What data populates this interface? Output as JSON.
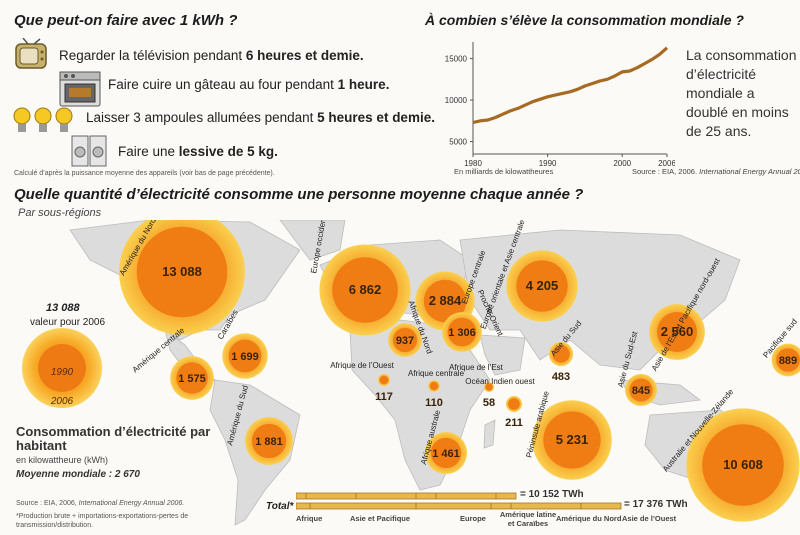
{
  "kwh": {
    "title": "Que peut-on faire avec 1 kWh ?",
    "items": [
      {
        "icon": "tv-icon",
        "prefix": "Regarder la télévision pendant ",
        "bold": "6 heures et demie."
      },
      {
        "icon": "oven-icon",
        "prefix": "Faire cuire un gâteau au four pendant ",
        "bold": "1 heure."
      },
      {
        "icon": "lightbulb-icon",
        "prefix": "Laisser 3 ampoules allumées pendant ",
        "bold": "5 heures et demie."
      },
      {
        "icon": "washing-machine-icon",
        "prefix": "Faire une ",
        "bold": "lessive de 5 kg."
      }
    ],
    "note": "Calculé d’après la puissance moyenne des appareils (voir bas de page précédente)."
  },
  "world": {
    "title": "À combien s’élève la consommation mondiale ?",
    "unit": "En milliards de kilowattheures",
    "source": "Source : EIA, 2006. ",
    "source_italic": "International Energy Annual 2006.",
    "text": "La consommation d’électricité mondiale a doublé en moins de 25 ans."
  },
  "chart_data": {
    "type": "line",
    "title": "",
    "xlabel": "",
    "ylabel": "",
    "x": [
      1980,
      1981,
      1982,
      1983,
      1984,
      1985,
      1986,
      1987,
      1988,
      1989,
      1990,
      1991,
      1992,
      1993,
      1994,
      1995,
      1996,
      1997,
      1998,
      1999,
      2000,
      2001,
      2002,
      2003,
      2004,
      2005,
      2006
    ],
    "series": [
      {
        "values": [
          7300,
          7500,
          7600,
          7900,
          8300,
          8700,
          9000,
          9400,
          9800,
          10100,
          10400,
          10600,
          10800,
          11000,
          11300,
          11700,
          12000,
          12300,
          12500,
          12900,
          13400,
          13500,
          13900,
          14400,
          14900,
          15500,
          16300
        ]
      }
    ],
    "xlim": [
      1980,
      2006
    ],
    "ylim": [
      3500,
      17000
    ],
    "yticks": [
      5000,
      10000,
      15000
    ],
    "xticks": [
      1980,
      1990,
      2000,
      2006
    ],
    "grid": false,
    "color": "#a76a22"
  },
  "person": {
    "title": "Quelle quantité d’électricité consomme une personne moyenne chaque année ?",
    "subtitle": "Par sous-régions"
  },
  "legend": {
    "value": "13 088",
    "value_label": "valeur pour 2006",
    "year_inner": "1990",
    "year_outer": "2006",
    "title": "Consommation d’électricité par habitant",
    "unit": "en kilowattheure (kWh)",
    "avg": "Moyenne mondiale : 2 670",
    "source": "Source : EIA, 2006, ",
    "source_italic": "International Energy Annual 2006.",
    "footnote": "*Production brute + importations-exportations-pertes de transmission/distribution."
  },
  "regions": [
    {
      "name": "Amérique du Nord",
      "value": "13 088",
      "v2006": 13088
    },
    {
      "name": "Europe occidentale",
      "value": "6 862",
      "v2006": 6862
    },
    {
      "name": "Europe centrale",
      "value": "2 884",
      "v2006": 2884
    },
    {
      "name": "Europe orientale et Asie centrale (ex-URSS)",
      "value": "4 205",
      "v2006": 4205
    },
    {
      "name": "Caraïbes",
      "value": "1 699",
      "v2006": 1699
    },
    {
      "name": "Amérique centrale",
      "value": "1 575",
      "v2006": 1575
    },
    {
      "name": "Afrique du Nord",
      "value": "937",
      "v2006": 937
    },
    {
      "name": "Proche-Orient",
      "value": "1 306",
      "v2006": 1306
    },
    {
      "name": "Asie du Sud",
      "value": "483",
      "v2006": 483
    },
    {
      "name": "Asie de l’Est et Pacifique nord-ouest",
      "value": "2 560",
      "v2006": 2560
    },
    {
      "name": "Afrique de l’Ouest",
      "value": "117",
      "v2006": 117
    },
    {
      "name": "Afrique centrale",
      "value": "110",
      "v2006": 110
    },
    {
      "name": "Afrique de l’Est",
      "value": "58",
      "v2006": 58
    },
    {
      "name": "Océan Indien ouest",
      "value": "211",
      "v2006": 211
    },
    {
      "name": "Asie du Sud-Est",
      "value": "845",
      "v2006": 845
    },
    {
      "name": "Pacifique sud",
      "value": "889",
      "v2006": 889
    },
    {
      "name": "Amérique du Sud",
      "value": "1 881",
      "v2006": 1881
    },
    {
      "name": "Afrique australe",
      "value": "1 461",
      "v2006": 1461
    },
    {
      "name": "Péninsule arabique",
      "value": "5 231",
      "v2006": 5231
    },
    {
      "name": "Australie et Nouvelle-Zélande",
      "value": "10 608",
      "v2006": 10608
    }
  ],
  "totals": {
    "label": "Total*",
    "t1990": "= 10 152 TWh",
    "t2006": "= 17 376 TWh",
    "segments": [
      "Afrique",
      "Asie et Pacifique",
      "Europe",
      "Amérique latine et Caraïbes",
      "Amérique du Nord",
      "Asie de l’Ouest"
    ]
  }
}
